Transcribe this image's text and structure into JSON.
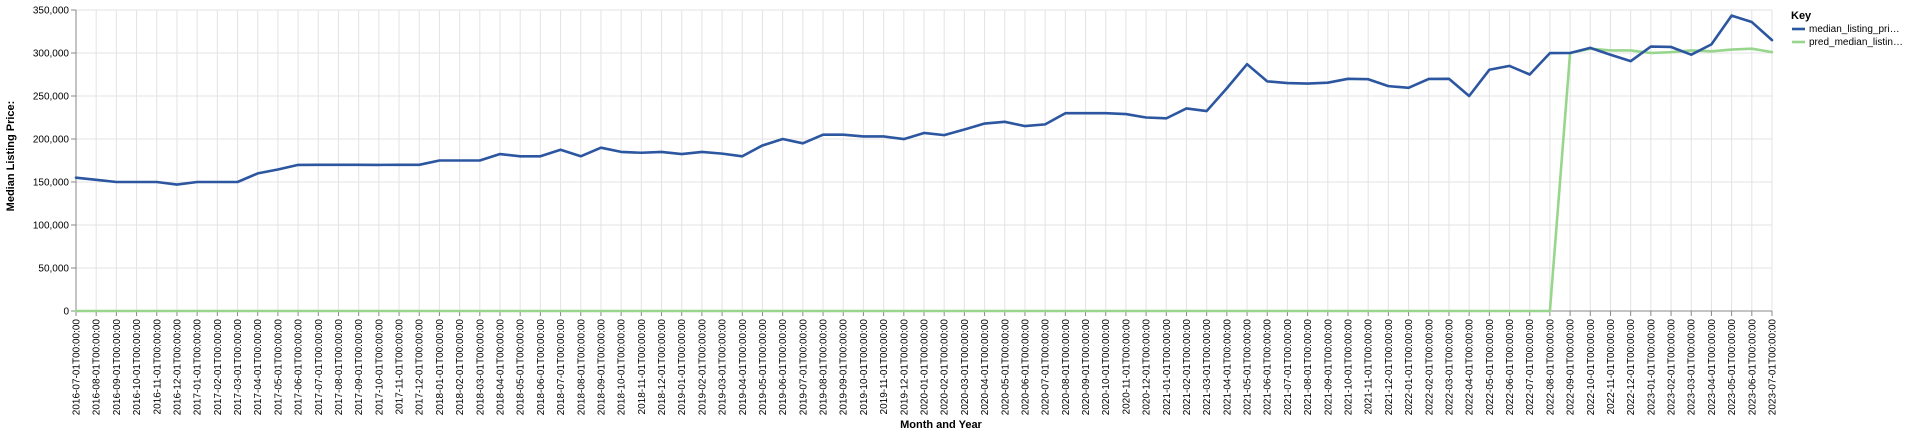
{
  "chart_data": {
    "type": "line",
    "xlabel": "Month and Year",
    "ylabel": "Median Listing Price:",
    "ylim": [
      0,
      350000
    ],
    "yticks": [
      0,
      50000,
      100000,
      150000,
      200000,
      250000,
      300000,
      350000
    ],
    "ytick_labels": [
      "0",
      "50,000",
      "100,000",
      "150,000",
      "200,000",
      "250,000",
      "300,000",
      "350,000"
    ],
    "grid": true,
    "legend": {
      "title": "Key",
      "placement": "right"
    },
    "x": [
      "2016-07-01T00:00:00",
      "2016-08-01T00:00:00",
      "2016-09-01T00:00:00",
      "2016-10-01T00:00:00",
      "2016-11-01T00:00:00",
      "2016-12-01T00:00:00",
      "2017-01-01T00:00:00",
      "2017-02-01T00:00:00",
      "2017-03-01T00:00:00",
      "2017-04-01T00:00:00",
      "2017-05-01T00:00:00",
      "2017-06-01T00:00:00",
      "2017-07-01T00:00:00",
      "2017-08-01T00:00:00",
      "2017-09-01T00:00:00",
      "2017-10-01T00:00:00",
      "2017-11-01T00:00:00",
      "2017-12-01T00:00:00",
      "2018-01-01T00:00:00",
      "2018-02-01T00:00:00",
      "2018-03-01T00:00:00",
      "2018-04-01T00:00:00",
      "2018-05-01T00:00:00",
      "2018-06-01T00:00:00",
      "2018-07-01T00:00:00",
      "2018-08-01T00:00:00",
      "2018-09-01T00:00:00",
      "2018-10-01T00:00:00",
      "2018-11-01T00:00:00",
      "2018-12-01T00:00:00",
      "2019-01-01T00:00:00",
      "2019-02-01T00:00:00",
      "2019-03-01T00:00:00",
      "2019-04-01T00:00:00",
      "2019-05-01T00:00:00",
      "2019-06-01T00:00:00",
      "2019-07-01T00:00:00",
      "2019-08-01T00:00:00",
      "2019-09-01T00:00:00",
      "2019-10-01T00:00:00",
      "2019-11-01T00:00:00",
      "2019-12-01T00:00:00",
      "2020-01-01T00:00:00",
      "2020-02-01T00:00:00",
      "2020-03-01T00:00:00",
      "2020-04-01T00:00:00",
      "2020-05-01T00:00:00",
      "2020-06-01T00:00:00",
      "2020-07-01T00:00:00",
      "2020-08-01T00:00:00",
      "2020-09-01T00:00:00",
      "2020-10-01T00:00:00",
      "2020-11-01T00:00:00",
      "2020-12-01T00:00:00",
      "2021-01-01T00:00:00",
      "2021-02-01T00:00:00",
      "2021-03-01T00:00:00",
      "2021-04-01T00:00:00",
      "2021-05-01T00:00:00",
      "2021-06-01T00:00:00",
      "2021-07-01T00:00:00",
      "2021-08-01T00:00:00",
      "2021-09-01T00:00:00",
      "2021-10-01T00:00:00",
      "2021-11-01T00:00:00",
      "2021-12-01T00:00:00",
      "2022-01-01T00:00:00",
      "2022-02-01T00:00:00",
      "2022-03-01T00:00:00",
      "2022-04-01T00:00:00",
      "2022-05-01T00:00:00",
      "2022-06-01T00:00:00",
      "2022-07-01T00:00:00",
      "2022-08-01T00:00:00",
      "2022-09-01T00:00:00",
      "2022-10-01T00:00:00",
      "2022-11-01T00:00:00",
      "2022-12-01T00:00:00",
      "2023-01-01T00:00:00",
      "2023-02-01T00:00:00",
      "2023-03-01T00:00:00",
      "2023-04-01T00:00:00",
      "2023-05-01T00:00:00",
      "2023-06-01T00:00:00",
      "2023-07-01T00:00:00"
    ],
    "series": [
      {
        "name": "median_listing_pri…",
        "color": "#2c56a0",
        "values": [
          155000,
          152500,
          150000,
          150000,
          150000,
          147000,
          150000,
          150000,
          150000,
          160000,
          164500,
          169900,
          170000,
          170000,
          170000,
          169900,
          170000,
          170000,
          175000,
          175000,
          175000,
          182500,
          179900,
          179900,
          187500,
          179900,
          189900,
          185000,
          184000,
          185000,
          182500,
          185000,
          183000,
          179900,
          192500,
          200000,
          195000,
          205000,
          205000,
          203000,
          203000,
          199900,
          207000,
          204500,
          211000,
          218000,
          220000,
          215000,
          217000,
          230000,
          230000,
          230000,
          229000,
          225000,
          224000,
          235500,
          232500,
          259000,
          287000,
          267000,
          265000,
          264500,
          265500,
          270000,
          269500,
          261500,
          259500,
          269900,
          270000,
          250000,
          280500,
          285000,
          275000,
          299900,
          300000,
          306000,
          298000,
          290500,
          307500,
          307000,
          298000,
          310000,
          343500,
          336000,
          315000
        ]
      },
      {
        "name": "pred_median_listin…",
        "color": "#97d68c",
        "values": [
          0,
          0,
          0,
          0,
          0,
          0,
          0,
          0,
          0,
          0,
          0,
          0,
          0,
          0,
          0,
          0,
          0,
          0,
          0,
          0,
          0,
          0,
          0,
          0,
          0,
          0,
          0,
          0,
          0,
          0,
          0,
          0,
          0,
          0,
          0,
          0,
          0,
          0,
          0,
          0,
          0,
          0,
          0,
          0,
          0,
          0,
          0,
          0,
          0,
          0,
          0,
          0,
          0,
          0,
          0,
          0,
          0,
          0,
          0,
          0,
          0,
          0,
          0,
          0,
          0,
          0,
          0,
          0,
          0,
          0,
          0,
          0,
          0,
          0,
          300000,
          305000,
          303000,
          303000,
          300000,
          301000,
          303000,
          302000,
          304000,
          305000,
          301000
        ]
      }
    ]
  }
}
